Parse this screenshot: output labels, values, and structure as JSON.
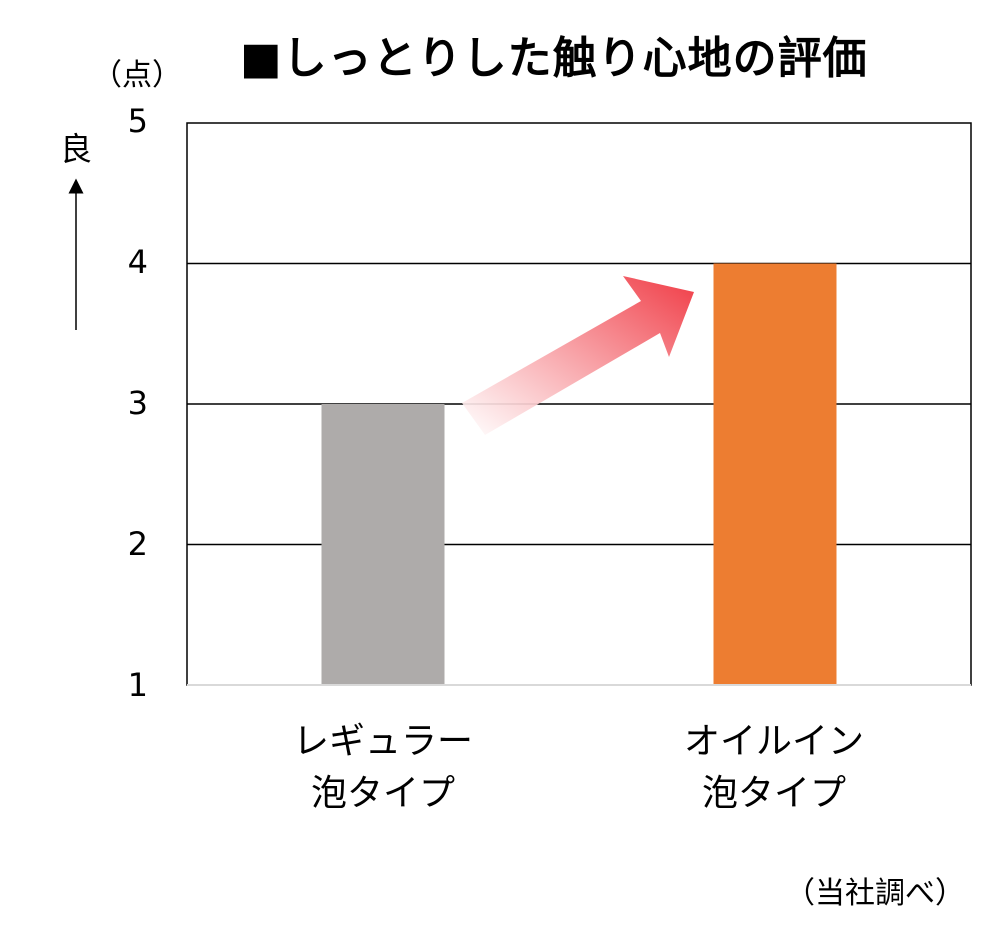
{
  "chart_data": {
    "type": "bar",
    "title": "■しっとりした触り心地の評価",
    "unit_label": "（点）",
    "better_label": "良",
    "categories": [
      {
        "line1": "レギュラー",
        "line2": "泡タイプ"
      },
      {
        "line1": "オイルイン",
        "line2": "泡タイプ"
      }
    ],
    "values": [
      3,
      4
    ],
    "bar_colors": [
      "#aeabaa",
      "#ed7d31"
    ],
    "ylim": [
      1,
      5
    ],
    "yticks": [
      "1",
      "2",
      "3",
      "4",
      "5"
    ],
    "grid": true,
    "source_note": "（当社調べ）"
  }
}
